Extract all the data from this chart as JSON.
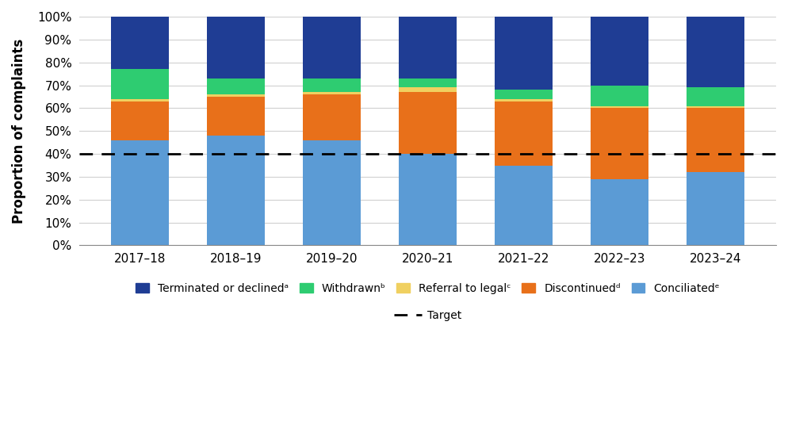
{
  "years": [
    "2017–18",
    "2018–19",
    "2019–20",
    "2020–21",
    "2021–22",
    "2022–23",
    "2023–24"
  ],
  "conciliated": [
    46,
    48,
    46,
    40,
    35,
    29,
    32
  ],
  "discontinued": [
    17,
    17,
    20,
    27,
    28,
    31,
    28
  ],
  "referral_to_legal": [
    1,
    1,
    1,
    2,
    1,
    1,
    1
  ],
  "withdrawn": [
    13,
    7,
    6,
    4,
    4,
    9,
    8
  ],
  "terminated_or_declined": [
    23,
    27,
    27,
    27,
    32,
    30,
    31
  ],
  "target": 40,
  "colors": {
    "terminated_or_declined": "#1f3d94",
    "withdrawn": "#2ecc71",
    "referral_to_legal": "#f0d060",
    "discontinued": "#e8701a",
    "conciliated": "#5b9bd5"
  },
  "ylabel": "Proportion of complaints",
  "ylim": [
    0,
    100
  ],
  "yticks": [
    0,
    10,
    20,
    30,
    40,
    50,
    60,
    70,
    80,
    90,
    100
  ],
  "ytick_labels": [
    "0%",
    "10%",
    "20%",
    "30%",
    "40%",
    "50%",
    "60%",
    "70%",
    "80%",
    "90%",
    "100%"
  ],
  "target_label": "Target",
  "legend_labels": {
    "terminated_or_declined": "Terminated or declinedᵃ",
    "withdrawn": "Withdrawnᵇ",
    "referral_to_legal": "Referral to legalᶜ",
    "discontinued": "Discontinuedᵈ",
    "conciliated": "Conciliatedᵉ"
  },
  "background_color": "#ffffff",
  "grid_color": "#d0d0d0",
  "bar_width": 0.6,
  "figsize": [
    9.94,
    5.36
  ],
  "dpi": 100
}
